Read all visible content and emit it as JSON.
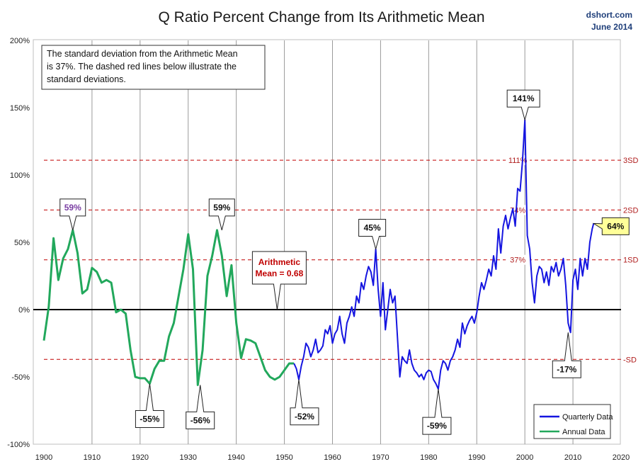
{
  "page": {
    "title": "Q Ratio Percent Change from Its Arithmetic Mean",
    "source_line1": "dshort.com",
    "source_line2": "June 2014"
  },
  "note": {
    "lines": [
      "The standard deviation from the Arithmetic Mean",
      "is 37%.  The dashed red lines below illustrate the",
      "standard deviations."
    ]
  },
  "chart_data": {
    "type": "line",
    "xlim": [
      1900,
      2020
    ],
    "ylim": [
      -100,
      200
    ],
    "x_ticks": [
      1900,
      1910,
      1920,
      1930,
      1940,
      1950,
      1960,
      1970,
      1980,
      1990,
      2000,
      2010,
      2020
    ],
    "y_ticks": [
      -100,
      -50,
      0,
      50,
      100,
      150,
      200
    ],
    "y_tick_labels": [
      "-100%",
      "-50%",
      "0%",
      "50%",
      "100%",
      "150%",
      "200%"
    ],
    "grid": "vertical",
    "legend_position": "bottom-right",
    "reference_lines": [
      {
        "value": 111,
        "label": "111%",
        "sd_label": "3SD",
        "color": "#c00000"
      },
      {
        "value": 74,
        "label": "74%",
        "sd_label": "2SD",
        "color": "#c00000"
      },
      {
        "value": 37,
        "label": "37%",
        "sd_label": "1SD",
        "color": "#c00000"
      },
      {
        "value": -37,
        "label": "",
        "sd_label": "-SD",
        "color": "#c00000"
      }
    ],
    "zero_line": 0,
    "series": [
      {
        "name": "Quarterly Data",
        "color": "#1515e0",
        "x": [
          1952.0,
          1952.5,
          1953.0,
          1953.5,
          1954.0,
          1954.5,
          1955.0,
          1955.5,
          1956.0,
          1956.5,
          1957.0,
          1957.5,
          1958.0,
          1958.5,
          1959.0,
          1959.5,
          1960.0,
          1960.5,
          1961.0,
          1961.5,
          1962.0,
          1962.5,
          1963.0,
          1963.5,
          1964.0,
          1964.5,
          1965.0,
          1965.5,
          1966.0,
          1966.5,
          1967.0,
          1967.5,
          1968.0,
          1968.5,
          1969.0,
          1969.5,
          1970.0,
          1970.5,
          1971.0,
          1971.5,
          1972.0,
          1972.5,
          1973.0,
          1973.5,
          1974.0,
          1974.5,
          1975.0,
          1975.5,
          1976.0,
          1976.5,
          1977.0,
          1977.5,
          1978.0,
          1978.5,
          1979.0,
          1979.5,
          1980.0,
          1980.5,
          1981.0,
          1981.5,
          1982.0,
          1982.5,
          1983.0,
          1983.5,
          1984.0,
          1984.5,
          1985.0,
          1985.5,
          1986.0,
          1986.5,
          1987.0,
          1987.5,
          1988.0,
          1988.5,
          1989.0,
          1989.5,
          1990.0,
          1990.5,
          1991.0,
          1991.5,
          1992.0,
          1992.5,
          1993.0,
          1993.5,
          1994.0,
          1994.5,
          1995.0,
          1995.5,
          1996.0,
          1996.5,
          1997.0,
          1997.5,
          1998.0,
          1998.5,
          1999.0,
          1999.5,
          2000.0,
          2000.5,
          2001.0,
          2001.5,
          2002.0,
          2002.5,
          2003.0,
          2003.5,
          2004.0,
          2004.5,
          2005.0,
          2005.5,
          2006.0,
          2006.5,
          2007.0,
          2007.5,
          2008.0,
          2008.5,
          2009.0,
          2009.5,
          2010.0,
          2010.5,
          2011.0,
          2011.5,
          2012.0,
          2012.5,
          2013.0,
          2013.5,
          2014.0,
          2014.3
        ],
        "values": [
          -40,
          -44,
          -52,
          -42,
          -35,
          -25,
          -28,
          -35,
          -30,
          -22,
          -32,
          -30,
          -27,
          -15,
          -18,
          -12,
          -25,
          -18,
          -15,
          -5,
          -18,
          -25,
          -10,
          -5,
          2,
          -5,
          10,
          5,
          20,
          15,
          25,
          32,
          28,
          18,
          45,
          15,
          -5,
          20,
          -15,
          0,
          15,
          5,
          10,
          -20,
          -50,
          -35,
          -38,
          -40,
          -30,
          -40,
          -45,
          -47,
          -50,
          -48,
          -52,
          -47,
          -45,
          -46,
          -52,
          -55,
          -59,
          -45,
          -38,
          -40,
          -45,
          -38,
          -35,
          -30,
          -22,
          -28,
          -10,
          -18,
          -12,
          -8,
          -5,
          -10,
          -2,
          10,
          20,
          15,
          22,
          30,
          25,
          40,
          30,
          60,
          42,
          62,
          70,
          60,
          68,
          75,
          62,
          90,
          88,
          110,
          141,
          55,
          45,
          20,
          5,
          25,
          32,
          30,
          20,
          28,
          18,
          32,
          28,
          35,
          25,
          30,
          38,
          18,
          -10,
          -17,
          22,
          30,
          15,
          38,
          25,
          38,
          30,
          50,
          60,
          64
        ]
      },
      {
        "name": "Annual Data",
        "color": "#22a85c",
        "x": [
          1900,
          1901,
          1902,
          1903,
          1904,
          1905,
          1906,
          1907,
          1908,
          1909,
          1910,
          1911,
          1912,
          1913,
          1914,
          1915,
          1916,
          1917,
          1918,
          1919,
          1920,
          1921,
          1922,
          1923,
          1924,
          1925,
          1926,
          1927,
          1928,
          1929,
          1930,
          1931,
          1932,
          1933,
          1934,
          1935,
          1936,
          1937,
          1938,
          1939,
          1940,
          1941,
          1942,
          1943,
          1944,
          1945,
          1946,
          1947,
          1948,
          1949,
          1950,
          1951,
          1952
        ],
        "values": [
          -23,
          2,
          53,
          22,
          38,
          45,
          59,
          42,
          12,
          15,
          31,
          28,
          20,
          22,
          20,
          -2,
          0,
          -3,
          -30,
          -50,
          -51,
          -51,
          -55,
          -44,
          -38,
          -38,
          -20,
          -10,
          10,
          30,
          56,
          30,
          -56,
          -30,
          25,
          40,
          59,
          40,
          10,
          33,
          -10,
          -36,
          -22,
          -23,
          -25,
          -35,
          -45,
          -50,
          -52,
          -50,
          -45,
          -40,
          -40
        ]
      }
    ],
    "annotations": [
      {
        "text": "59%",
        "x": 1906,
        "y": 59
      },
      {
        "text": "-55%",
        "x": 1922,
        "y": -55
      },
      {
        "text": "-56%",
        "x": 1932.5,
        "y": -56
      },
      {
        "text": "59%",
        "x": 1937,
        "y": 59
      },
      {
        "text": "-52%",
        "x": 1953,
        "y": -52
      },
      {
        "text": "45%",
        "x": 1969,
        "y": 45
      },
      {
        "text": "-59%",
        "x": 1982,
        "y": -59
      },
      {
        "text": "141%",
        "x": 2000,
        "y": 141
      },
      {
        "text": "-17%",
        "x": 2009,
        "y": -17
      },
      {
        "text": "64%",
        "x": 2014.3,
        "y": 64
      },
      {
        "text": "Arithmetic\nMean = 0.68",
        "x": 1948.5,
        "y": 0
      }
    ]
  }
}
